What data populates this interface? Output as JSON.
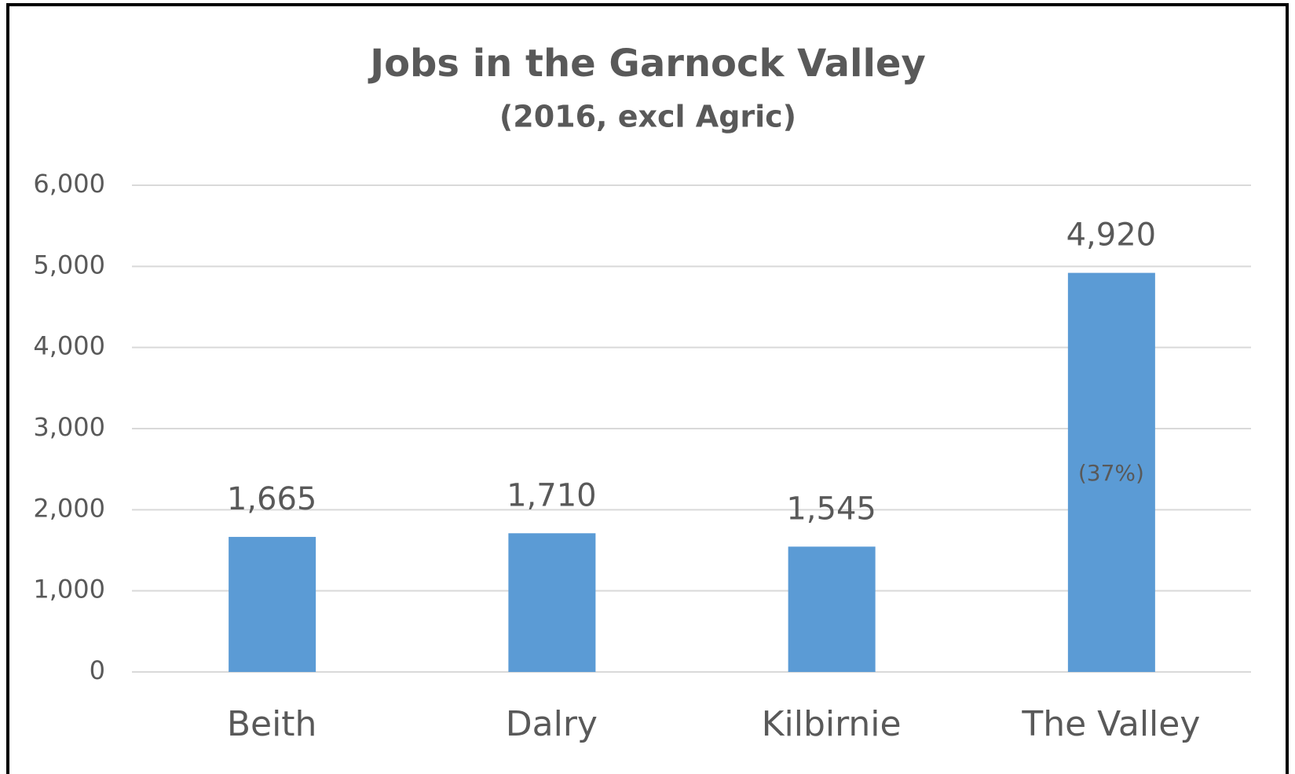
{
  "chart_data": {
    "type": "bar",
    "title": "Jobs in the Garnock Valley",
    "subtitle": "(2016, excl Agric)",
    "categories": [
      "Beith",
      "Dalry",
      "Kilbirnie",
      "The Valley"
    ],
    "values": [
      1665,
      1710,
      1545,
      4920
    ],
    "value_labels": [
      "1,665",
      "1,710",
      "1,545",
      "4,920"
    ],
    "annotation": "(37%)",
    "color": "#5b9bd5",
    "ylim": [
      0,
      6000
    ],
    "yticks": [
      0,
      {
        "value": 1000,
        "label": "1,000"
      },
      {
        "value": 2000,
        "label": "2,000"
      },
      {
        "value": 3000,
        "label": "3,000"
      },
      {
        "value": 4000,
        "label": "4,000"
      },
      {
        "value": 5000,
        "label": "5,000"
      },
      {
        "value": 6000,
        "label": "6,000"
      }
    ],
    "grid": true
  }
}
